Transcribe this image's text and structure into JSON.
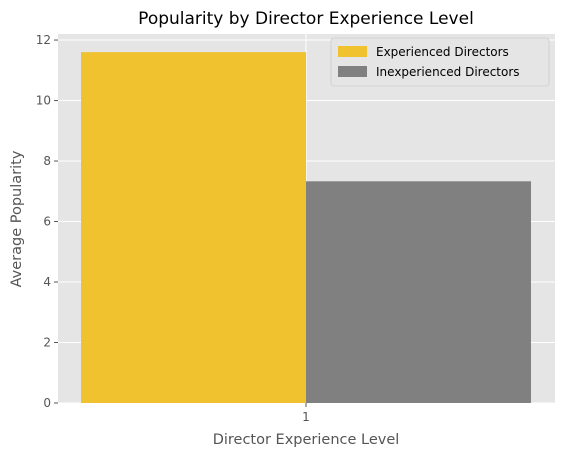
{
  "chart_data": {
    "type": "bar",
    "title": "Popularity by Director Experience Level",
    "xlabel": "Director Experience Level",
    "ylabel": "Average Popularity",
    "categories": [
      "1"
    ],
    "series": [
      {
        "name": "Experienced Directors",
        "values": [
          11.6
        ],
        "color": "#f0c230"
      },
      {
        "name": "Inexperienced Directors",
        "values": [
          7.33
        ],
        "color": "#808080"
      }
    ],
    "ylim": [
      0,
      12.2
    ],
    "yticks": [
      0,
      2,
      4,
      6,
      8,
      10,
      12
    ],
    "grid": true,
    "legend_position": "top-right",
    "plot_background": "#e5e5e5",
    "grid_color": "#ffffff"
  }
}
